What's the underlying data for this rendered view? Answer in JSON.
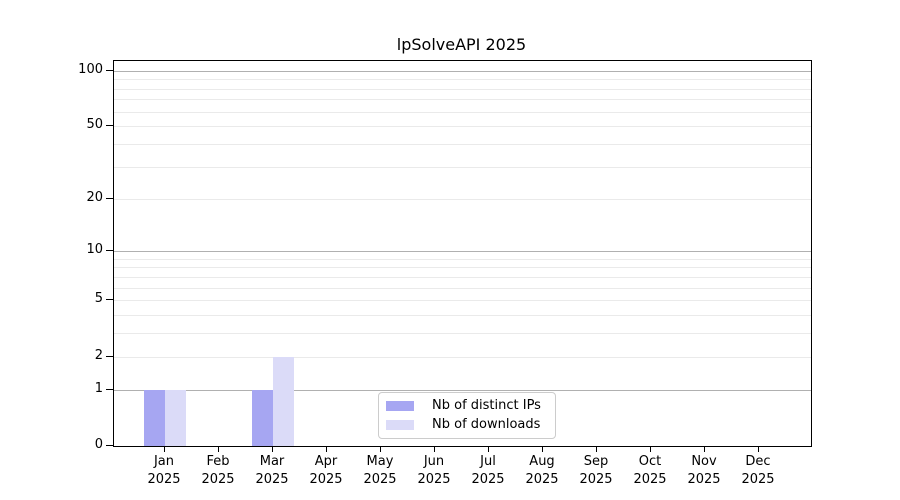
{
  "chart_data": {
    "type": "bar",
    "title": "lpSolveAPI 2025",
    "categories": [
      "Jan 2025",
      "Feb 2025",
      "Mar 2025",
      "Apr 2025",
      "May 2025",
      "Jun 2025",
      "Jul 2025",
      "Aug 2025",
      "Sep 2025",
      "Oct 2025",
      "Nov 2025",
      "Dec 2025"
    ],
    "series": [
      {
        "name": "Nb of distinct IPs",
        "color": "#a6a6f2",
        "values": [
          1,
          0,
          1,
          0,
          0,
          0,
          0,
          0,
          0,
          0,
          0,
          0
        ]
      },
      {
        "name": "Nb of downloads",
        "color": "#dbdbf8",
        "values": [
          1,
          0,
          2,
          0,
          0,
          0,
          0,
          0,
          0,
          0,
          0,
          0
        ]
      }
    ],
    "xlabel": "",
    "ylabel": "",
    "yscale": "log1p",
    "ylim": [
      0,
      113
    ],
    "yticks": [
      0,
      1,
      2,
      5,
      10,
      20,
      50,
      100
    ],
    "grid": {
      "on": true,
      "major_values": [
        1,
        10,
        100
      ],
      "minor_values": [
        2,
        3,
        4,
        5,
        6,
        7,
        8,
        9,
        20,
        30,
        40,
        50,
        60,
        70,
        80,
        90
      ],
      "major_color": "#b0b0b0",
      "minor_color": "#eaeaea"
    },
    "legend_position": "lower center inside plot",
    "axis_color": "#000000",
    "background_color": "#ffffff"
  }
}
